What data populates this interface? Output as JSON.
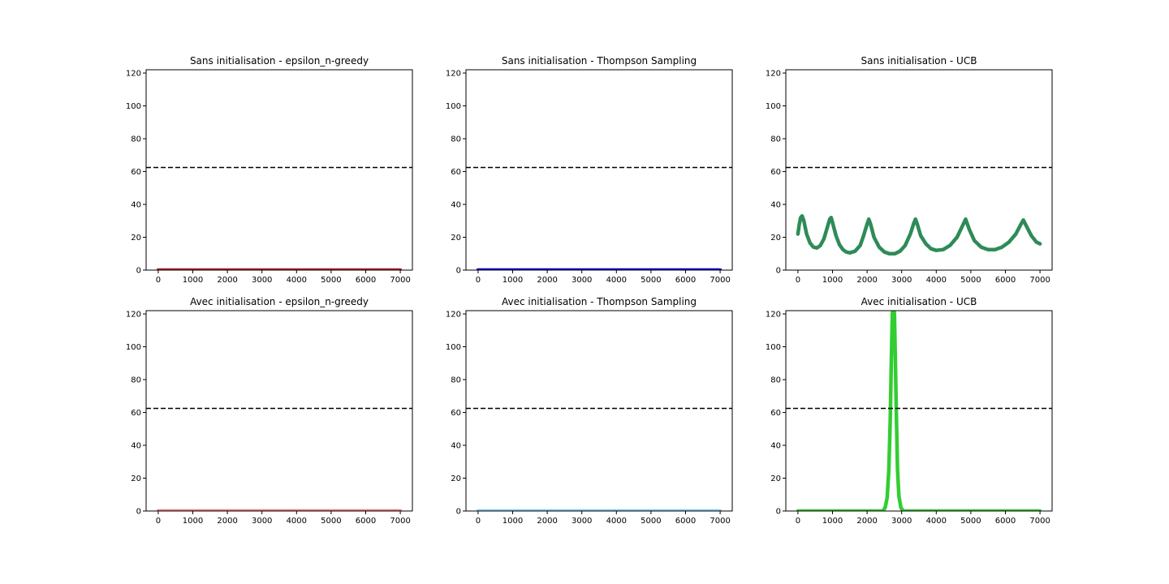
{
  "chart_data": [
    {
      "type": "line",
      "title": "Sans initialisation - epsilon_n-greedy",
      "xlim": [
        -350,
        7350
      ],
      "ylim": [
        0,
        122
      ],
      "xticks": [
        0,
        1000,
        2000,
        3000,
        4000,
        5000,
        6000,
        7000
      ],
      "yticks": [
        0,
        20,
        40,
        60,
        80,
        100,
        120
      ],
      "reference_line": {
        "y": 62.5,
        "style": "dashed",
        "color": "#000000"
      },
      "series": [
        {
          "color": "#b22222",
          "points": [
            [
              0,
              0
            ],
            [
              7000,
              0
            ]
          ]
        }
      ]
    },
    {
      "type": "line",
      "title": "Sans initialisation - Thompson Sampling",
      "xlim": [
        -350,
        7350
      ],
      "ylim": [
        0,
        122
      ],
      "xticks": [
        0,
        1000,
        2000,
        3000,
        4000,
        5000,
        6000,
        7000
      ],
      "yticks": [
        0,
        20,
        40,
        60,
        80,
        100,
        120
      ],
      "reference_line": {
        "y": 62.5,
        "style": "dashed",
        "color": "#000000"
      },
      "series": [
        {
          "color": "#0000cd",
          "points": [
            [
              0,
              0
            ],
            [
              7000,
              0
            ]
          ]
        }
      ]
    },
    {
      "type": "line",
      "title": "Sans initialisation - UCB",
      "xlim": [
        -350,
        7350
      ],
      "ylim": [
        0,
        122
      ],
      "xticks": [
        0,
        1000,
        2000,
        3000,
        4000,
        5000,
        6000,
        7000
      ],
      "yticks": [
        0,
        20,
        40,
        60,
        80,
        100,
        120
      ],
      "reference_line": {
        "y": 62.5,
        "style": "dashed",
        "color": "#000000"
      },
      "series": [
        {
          "color": "#2e8b57",
          "points": [
            [
              0,
              22
            ],
            [
              40,
              28
            ],
            [
              80,
              32
            ],
            [
              120,
              33
            ],
            [
              170,
              30
            ],
            [
              250,
              22
            ],
            [
              350,
              16.5
            ],
            [
              450,
              14
            ],
            [
              550,
              13.5
            ],
            [
              650,
              15
            ],
            [
              750,
              19
            ],
            [
              850,
              26
            ],
            [
              920,
              31
            ],
            [
              960,
              32
            ],
            [
              1000,
              29
            ],
            [
              1100,
              21
            ],
            [
              1200,
              15.5
            ],
            [
              1300,
              12.5
            ],
            [
              1400,
              11
            ],
            [
              1500,
              10.5
            ],
            [
              1650,
              11.5
            ],
            [
              1800,
              15
            ],
            [
              1900,
              21
            ],
            [
              2000,
              28
            ],
            [
              2050,
              31
            ],
            [
              2100,
              28
            ],
            [
              2200,
              20
            ],
            [
              2350,
              14
            ],
            [
              2500,
              11
            ],
            [
              2650,
              10
            ],
            [
              2800,
              10
            ],
            [
              2950,
              11.5
            ],
            [
              3100,
              15
            ],
            [
              3250,
              22
            ],
            [
              3350,
              28.5
            ],
            [
              3400,
              31
            ],
            [
              3450,
              28
            ],
            [
              3550,
              21
            ],
            [
              3700,
              16
            ],
            [
              3850,
              13
            ],
            [
              4000,
              12
            ],
            [
              4200,
              12.5
            ],
            [
              4400,
              15
            ],
            [
              4600,
              20
            ],
            [
              4750,
              26.5
            ],
            [
              4850,
              31
            ],
            [
              4950,
              25
            ],
            [
              5100,
              18
            ],
            [
              5300,
              14
            ],
            [
              5500,
              12.5
            ],
            [
              5700,
              12.5
            ],
            [
              5900,
              14
            ],
            [
              6100,
              17
            ],
            [
              6300,
              22
            ],
            [
              6450,
              28
            ],
            [
              6520,
              30.5
            ],
            [
              6600,
              27
            ],
            [
              6750,
              21
            ],
            [
              6900,
              17
            ],
            [
              7000,
              16
            ]
          ]
        }
      ]
    },
    {
      "type": "line",
      "title": "Avec initialisation - epsilon_n-greedy",
      "xlim": [
        -350,
        7350
      ],
      "ylim": [
        0,
        122
      ],
      "xticks": [
        0,
        1000,
        2000,
        3000,
        4000,
        5000,
        6000,
        7000
      ],
      "yticks": [
        0,
        20,
        40,
        60,
        80,
        100,
        120
      ],
      "reference_line": {
        "y": 62.5,
        "style": "dashed",
        "color": "#000000"
      },
      "series": [
        {
          "color": "#f08080",
          "points": [
            [
              0,
              0
            ],
            [
              7000,
              0
            ]
          ]
        }
      ]
    },
    {
      "type": "line",
      "title": "Avec initialisation - Thompson Sampling",
      "xlim": [
        -350,
        7350
      ],
      "ylim": [
        0,
        122
      ],
      "xticks": [
        0,
        1000,
        2000,
        3000,
        4000,
        5000,
        6000,
        7000
      ],
      "yticks": [
        0,
        20,
        40,
        60,
        80,
        100,
        120
      ],
      "reference_line": {
        "y": 62.5,
        "style": "dashed",
        "color": "#000000"
      },
      "series": [
        {
          "color": "#87cefa",
          "points": [
            [
              0,
              0
            ],
            [
              7000,
              0
            ]
          ]
        }
      ]
    },
    {
      "type": "line",
      "title": "Avec initialisation - UCB",
      "xlim": [
        -350,
        7350
      ],
      "ylim": [
        0,
        122
      ],
      "xticks": [
        0,
        1000,
        2000,
        3000,
        4000,
        5000,
        6000,
        7000
      ],
      "yticks": [
        0,
        20,
        40,
        60,
        80,
        100,
        120
      ],
      "reference_line": {
        "y": 62.5,
        "style": "dashed",
        "color": "#000000"
      },
      "series": [
        {
          "color": "#32cd32",
          "points": [
            [
              0,
              0
            ],
            [
              2450,
              0
            ],
            [
              2520,
              2
            ],
            [
              2580,
              8
            ],
            [
              2630,
              25
            ],
            [
              2670,
              55
            ],
            [
              2700,
              90
            ],
            [
              2730,
              120
            ],
            [
              2760,
              125
            ],
            [
              2790,
              120
            ],
            [
              2820,
              90
            ],
            [
              2850,
              55
            ],
            [
              2880,
              25
            ],
            [
              2920,
              9
            ],
            [
              2980,
              2
            ],
            [
              3050,
              0
            ],
            [
              7000,
              0
            ]
          ]
        }
      ]
    }
  ]
}
